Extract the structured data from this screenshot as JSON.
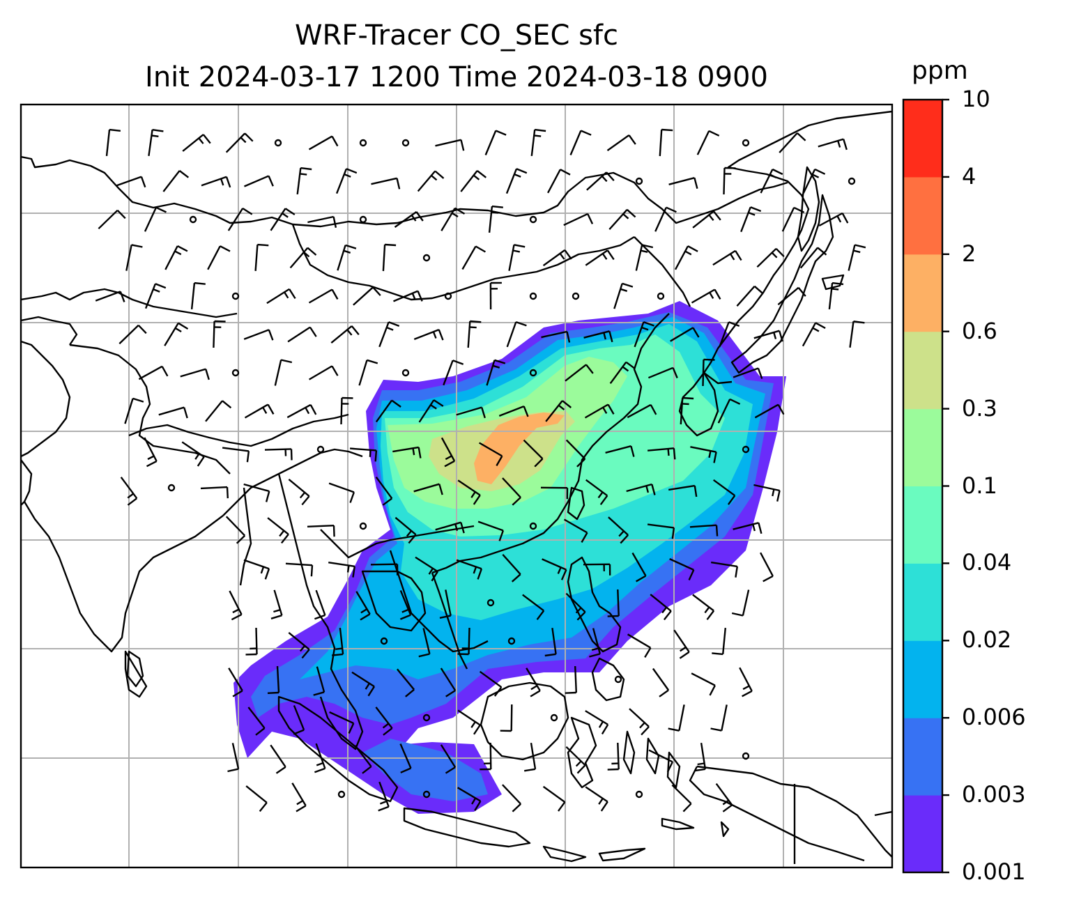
{
  "title_line_1": "WRF-Tracer CO_SEC sfc",
  "title_line_2": "Init 2024-03-17 1200 Time 2024-03-18 0900",
  "colorbar": {
    "unit": "ppm",
    "ticks": [
      "10",
      "4",
      "2",
      "0.6",
      "0.3",
      "0.1",
      "0.04",
      "0.02",
      "0.006",
      "0.003",
      "0.001"
    ],
    "colors": [
      "#6a2cfa",
      "#3772f3",
      "#03b3ee",
      "#2de0d7",
      "#6afbbf",
      "#9bfb9b",
      "#cde18a",
      "#fdb064",
      "#ff7040",
      "#ff2d1b"
    ]
  },
  "map": {
    "coastline_color": "#000000",
    "grid_color": "#b0b0b0",
    "barb_color": "#000000"
  }
}
